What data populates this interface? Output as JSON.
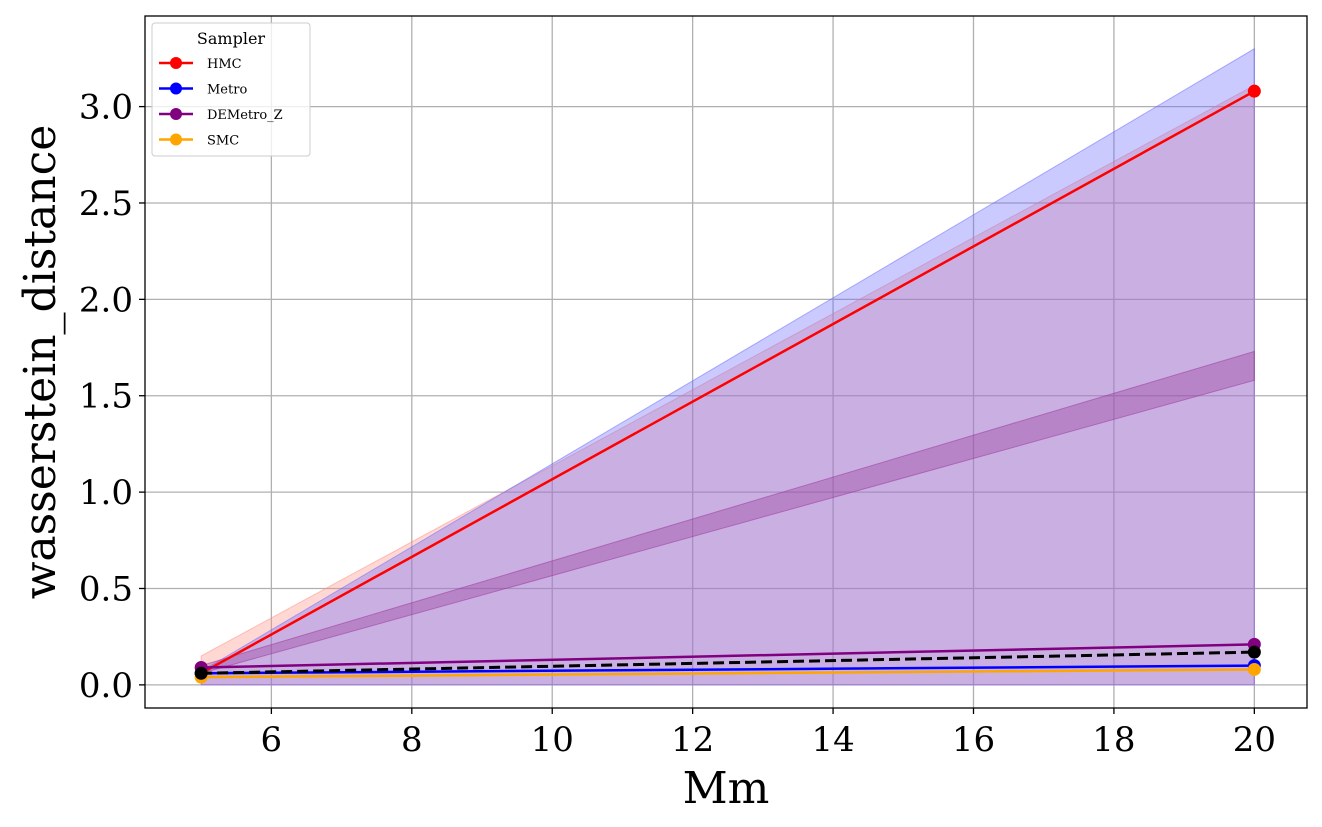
{
  "chart_data": {
    "type": "line",
    "xlabel": "Mm",
    "ylabel": "wasserstein_distance",
    "xlim": [
      4.2,
      20.75
    ],
    "ylim": [
      -0.12,
      3.47
    ],
    "xticks": [
      6,
      8,
      10,
      12,
      14,
      16,
      18,
      20
    ],
    "yticks": [
      0.0,
      0.5,
      1.0,
      1.5,
      2.0,
      2.5,
      3.0
    ],
    "xtick_labels": [
      "6",
      "8",
      "10",
      "12",
      "14",
      "16",
      "18",
      "20"
    ],
    "ytick_labels": [
      "0.0",
      "0.5",
      "1.0",
      "1.5",
      "2.0",
      "2.5",
      "3.0"
    ],
    "grid": true,
    "legend": {
      "title": "Sampler",
      "placement": "top-left"
    },
    "x": [
      5,
      20
    ],
    "series": [
      {
        "name": "HMC",
        "color": "#ff0000",
        "values": [
          0.06,
          3.08
        ],
        "band": [
          [
            0.0,
            0.15
          ],
          [
            0.0,
            3.11
          ]
        ],
        "band_color": "#ff8c80"
      },
      {
        "name": "Metro",
        "color": "#0000ff",
        "values": [
          0.06,
          0.1
        ],
        "band": [
          [
            0.0,
            0.07
          ],
          [
            0.0,
            3.3
          ]
        ],
        "band_color": "#6666ff"
      },
      {
        "name": "DEMetro_Z",
        "color": "#800080",
        "values": [
          0.09,
          0.21
        ],
        "band": [
          [
            0.06,
            0.1
          ],
          [
            1.58,
            1.73
          ]
        ],
        "band_color": "#993399"
      },
      {
        "name": "SMC",
        "color": "#ffa500",
        "values": [
          0.04,
          0.08
        ],
        "band": null,
        "band_color": "#ffa500"
      }
    ],
    "reference": {
      "color": "#000000",
      "style": "dashed",
      "values": [
        0.06,
        0.17
      ]
    }
  }
}
